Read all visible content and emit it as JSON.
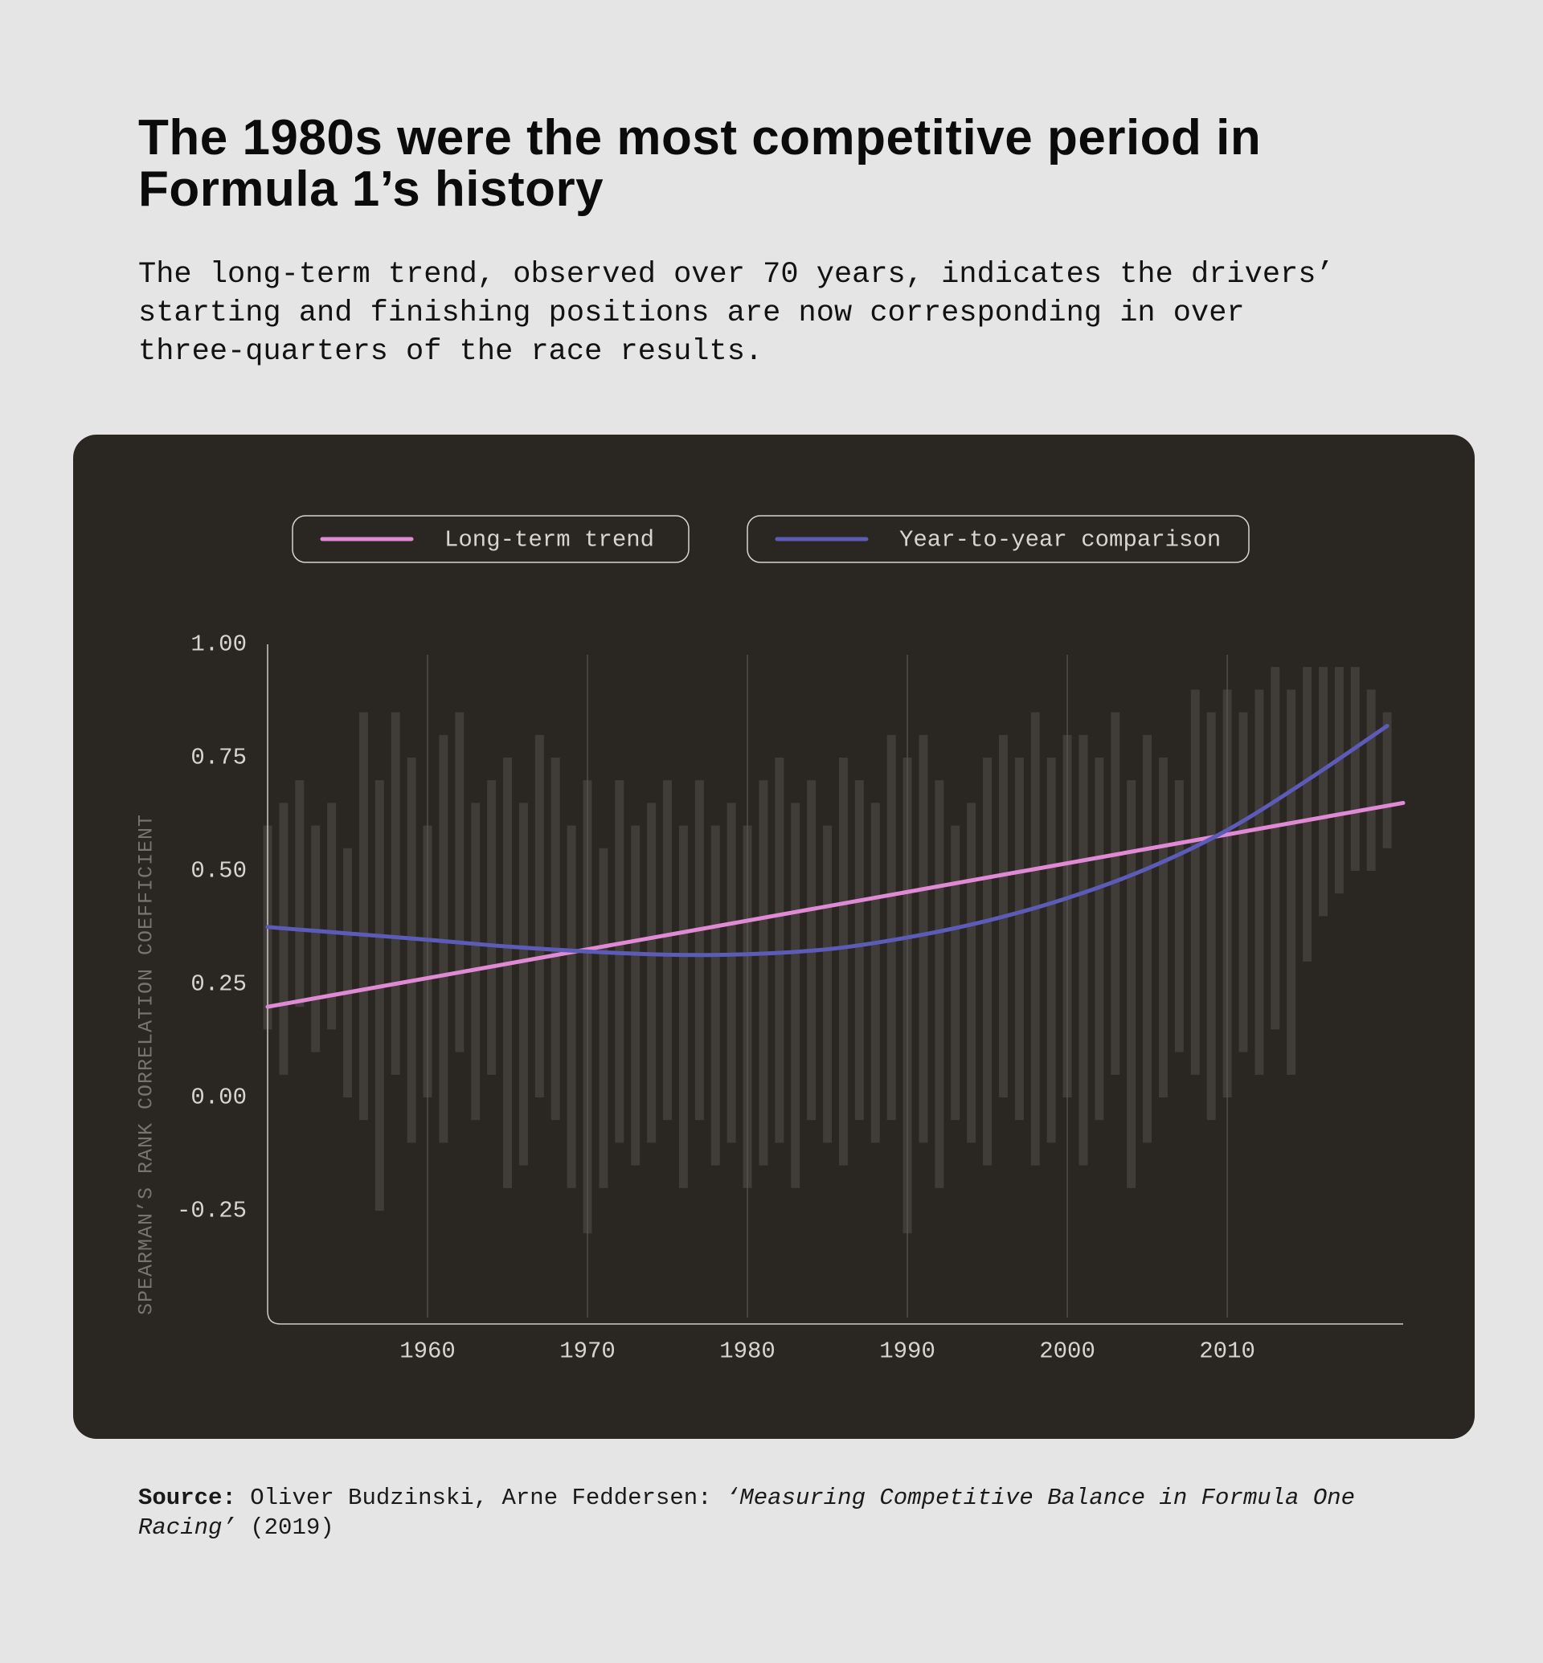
{
  "chart_data": {
    "type": "line",
    "title": "The 1980s were the most competitive period in Formula 1’s history",
    "subtitle": "The long-term trend, observed over 70 years, indicates the drivers’ starting and finishing positions are now corresponding in over three-quarters of the race results.",
    "ylabel": "SPEARMAN’S RANK CORRELATION COEFFICIENT",
    "xlim": [
      1950,
      2021
    ],
    "xticks": [
      1960,
      1970,
      1980,
      1990,
      2000,
      2010
    ],
    "ylim": [
      -0.5,
      1.0
    ],
    "yticks": [
      -0.25,
      {
        "value": 0,
        "label": "0.00"
      },
      0.25,
      {
        "value": 0.5,
        "label": "0.50"
      },
      0.75,
      {
        "value": 1.0,
        "label": "1.00"
      }
    ],
    "grid": true,
    "series": [
      {
        "name": "Long-term trend",
        "color": "#e08ad6",
        "curve": "straight",
        "x": [
          1950,
          2021
        ],
        "values": [
          0.2,
          0.65
        ]
      },
      {
        "name": "Year-to-year comparison",
        "color": "#5c5cb8",
        "curve": "smooth",
        "x": [
          1950,
          1955,
          1960,
          1965,
          1970,
          1975,
          1980,
          1985,
          1990,
          1995,
          2000,
          2005,
          2010,
          2015,
          2020
        ],
        "values": [
          0.376,
          0.362,
          0.348,
          0.333,
          0.322,
          0.315,
          0.316,
          0.327,
          0.353,
          0.39,
          0.44,
          0.505,
          0.59,
          0.7,
          0.82
        ]
      }
    ],
    "spread": {
      "color": "#4a4640",
      "x": [
        1950,
        1951,
        1952,
        1953,
        1954,
        1955,
        1956,
        1957,
        1958,
        1959,
        1960,
        1961,
        1962,
        1963,
        1964,
        1965,
        1966,
        1967,
        1968,
        1969,
        1970,
        1971,
        1972,
        1973,
        1974,
        1975,
        1976,
        1977,
        1978,
        1979,
        1980,
        1981,
        1982,
        1983,
        1984,
        1985,
        1986,
        1987,
        1988,
        1989,
        1990,
        1991,
        1992,
        1993,
        1994,
        1995,
        1996,
        1997,
        1998,
        1999,
        2000,
        2001,
        2002,
        2003,
        2004,
        2005,
        2006,
        2007,
        2008,
        2009,
        2010,
        2011,
        2012,
        2013,
        2014,
        2015,
        2016,
        2017,
        2018,
        2019,
        2020
      ],
      "low": [
        0.15,
        0.05,
        0.2,
        0.1,
        0.15,
        0.0,
        -0.05,
        -0.25,
        0.05,
        -0.1,
        0.0,
        -0.1,
        0.1,
        -0.05,
        0.05,
        -0.2,
        -0.15,
        0.0,
        -0.05,
        -0.2,
        -0.3,
        -0.2,
        -0.1,
        -0.15,
        -0.1,
        -0.05,
        -0.2,
        -0.05,
        -0.15,
        -0.1,
        -0.2,
        -0.15,
        -0.1,
        -0.2,
        -0.05,
        -0.1,
        -0.15,
        -0.05,
        -0.1,
        -0.05,
        -0.3,
        -0.1,
        -0.2,
        -0.05,
        -0.1,
        -0.15,
        0.0,
        -0.05,
        -0.15,
        -0.1,
        0.0,
        -0.15,
        -0.05,
        0.05,
        -0.2,
        -0.1,
        0.0,
        0.1,
        0.05,
        -0.05,
        0.0,
        0.1,
        0.05,
        0.15,
        0.05,
        0.3,
        0.4,
        0.45,
        0.5,
        0.5,
        0.55
      ],
      "high": [
        0.6,
        0.65,
        0.7,
        0.6,
        0.65,
        0.55,
        0.85,
        0.7,
        0.85,
        0.75,
        0.6,
        0.8,
        0.85,
        0.65,
        0.7,
        0.75,
        0.65,
        0.8,
        0.75,
        0.6,
        0.7,
        0.55,
        0.7,
        0.6,
        0.65,
        0.7,
        0.6,
        0.7,
        0.6,
        0.65,
        0.6,
        0.7,
        0.75,
        0.65,
        0.7,
        0.6,
        0.75,
        0.7,
        0.65,
        0.8,
        0.75,
        0.8,
        0.7,
        0.6,
        0.65,
        0.75,
        0.8,
        0.75,
        0.85,
        0.75,
        0.8,
        0.8,
        0.75,
        0.85,
        0.7,
        0.8,
        0.75,
        0.7,
        0.9,
        0.85,
        0.9,
        0.85,
        0.9,
        0.95,
        0.9,
        0.95,
        0.95,
        0.95,
        0.95,
        0.9,
        0.85
      ]
    }
  },
  "source": {
    "label": "Source:",
    "authors": "Oliver Budzinski, Arne Feddersen:",
    "work": "‘Measuring Competitive Balance in Formula One Racing’",
    "year": "(2019)"
  }
}
